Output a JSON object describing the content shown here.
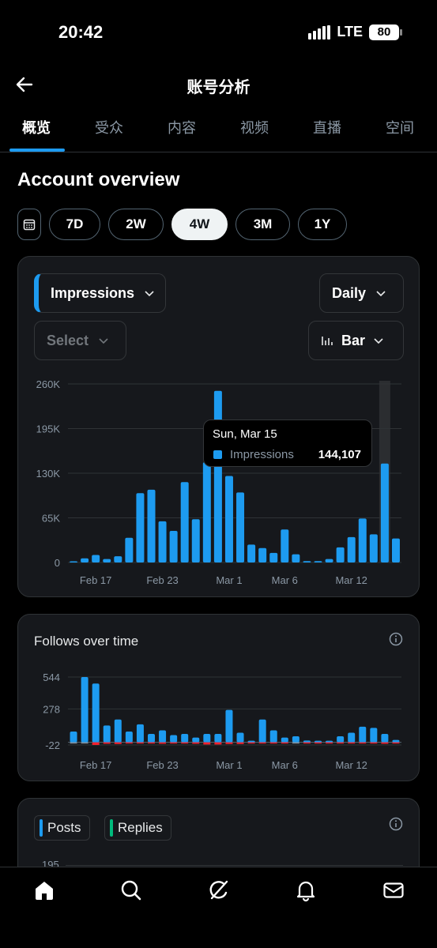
{
  "status": {
    "time": "20:42",
    "network": "LTE",
    "battery": "80"
  },
  "header": {
    "title": "账号分析",
    "back_icon": "arrow-left-icon"
  },
  "tabs": [
    {
      "label": "概览",
      "active": true
    },
    {
      "label": "受众"
    },
    {
      "label": "内容"
    },
    {
      "label": "视频"
    },
    {
      "label": "直播"
    },
    {
      "label": "空间"
    }
  ],
  "overview": {
    "title": "Account overview",
    "ranges": [
      "7D",
      "2W",
      "4W",
      "3M",
      "1Y"
    ],
    "active_range": "4W"
  },
  "impressions_card": {
    "metric_select": "Impressions",
    "interval_select": "Daily",
    "compare_select": "Select",
    "chart_type_select": "Bar",
    "tooltip": {
      "date": "Sun, Mar 15",
      "series": "Impressions",
      "value": "144,107"
    }
  },
  "follows_card": {
    "title": "Follows over time"
  },
  "posts_card": {
    "chips": [
      "Posts",
      "Replies"
    ],
    "partial_tick": "195"
  },
  "colors": {
    "accent": "#1d9bf0",
    "negative": "#f4212e",
    "replies": "#00ba7c",
    "card_bg": "#16181c"
  },
  "chart_data": [
    {
      "type": "bar",
      "series_label": "Impressions",
      "x": [
        "Feb 15",
        "Feb 16",
        "Feb 17",
        "Feb 18",
        "Feb 19",
        "Feb 20",
        "Feb 21",
        "Feb 22",
        "Feb 23",
        "Feb 24",
        "Feb 25",
        "Feb 26",
        "Feb 27",
        "Feb 28",
        "Mar 1",
        "Mar 2",
        "Mar 3",
        "Mar 4",
        "Mar 5",
        "Mar 6",
        "Mar 7",
        "Mar 8",
        "Mar 9",
        "Mar 10",
        "Mar 11",
        "Mar 12",
        "Mar 13",
        "Mar 14",
        "Mar 15",
        "Mar 16"
      ],
      "values": [
        1500,
        6000,
        11000,
        5000,
        9000,
        36000,
        101000,
        106000,
        60000,
        46000,
        117000,
        63000,
        146000,
        250000,
        126000,
        102000,
        26000,
        21000,
        14000,
        48000,
        12000,
        2000,
        2000,
        5000,
        22000,
        37000,
        64000,
        41000,
        144107,
        35000
      ],
      "highlighted_index": 28,
      "x_tick_labels": [
        "Feb 17",
        "Feb 23",
        "Mar 1",
        "Mar 6",
        "Mar 12"
      ],
      "y_ticks": [
        "0",
        "65K",
        "130K",
        "195K",
        "260K"
      ],
      "ylim": [
        0,
        260000
      ]
    },
    {
      "type": "bar",
      "title": "Follows over time",
      "x": [
        "Feb 15",
        "Feb 16",
        "Feb 17",
        "Feb 18",
        "Feb 19",
        "Feb 20",
        "Feb 21",
        "Feb 22",
        "Feb 23",
        "Feb 24",
        "Feb 25",
        "Feb 26",
        "Feb 27",
        "Feb 28",
        "Mar 1",
        "Mar 2",
        "Mar 3",
        "Mar 4",
        "Mar 5",
        "Mar 6",
        "Mar 7",
        "Mar 8",
        "Mar 9",
        "Mar 10",
        "Mar 11",
        "Mar 12",
        "Mar 13",
        "Mar 14",
        "Mar 15",
        "Mar 16"
      ],
      "values": [
        90,
        544,
        490,
        140,
        190,
        90,
        150,
        70,
        100,
        60,
        70,
        40,
        70,
        70,
        270,
        80,
        5,
        190,
        100,
        40,
        50,
        15,
        5,
        5,
        50,
        80,
        130,
        120,
        70,
        20
      ],
      "negative": [
        0,
        0,
        -22,
        -12,
        -14,
        -10,
        -8,
        -6,
        -12,
        -8,
        -10,
        -12,
        -18,
        -18,
        -14,
        -14,
        -6,
        -8,
        -10,
        -8,
        0,
        -4,
        -6,
        -6,
        -8,
        -8,
        -6,
        -8,
        -12,
        -6
      ],
      "x_tick_labels": [
        "Feb 17",
        "Feb 23",
        "Mar 1",
        "Mar 6",
        "Mar 12"
      ],
      "y_ticks": [
        "-22",
        "278",
        "544"
      ],
      "ylim": [
        -22,
        544
      ]
    }
  ],
  "bottom_nav": [
    "home-icon",
    "search-icon",
    "grok-icon",
    "bell-icon",
    "mail-icon"
  ]
}
